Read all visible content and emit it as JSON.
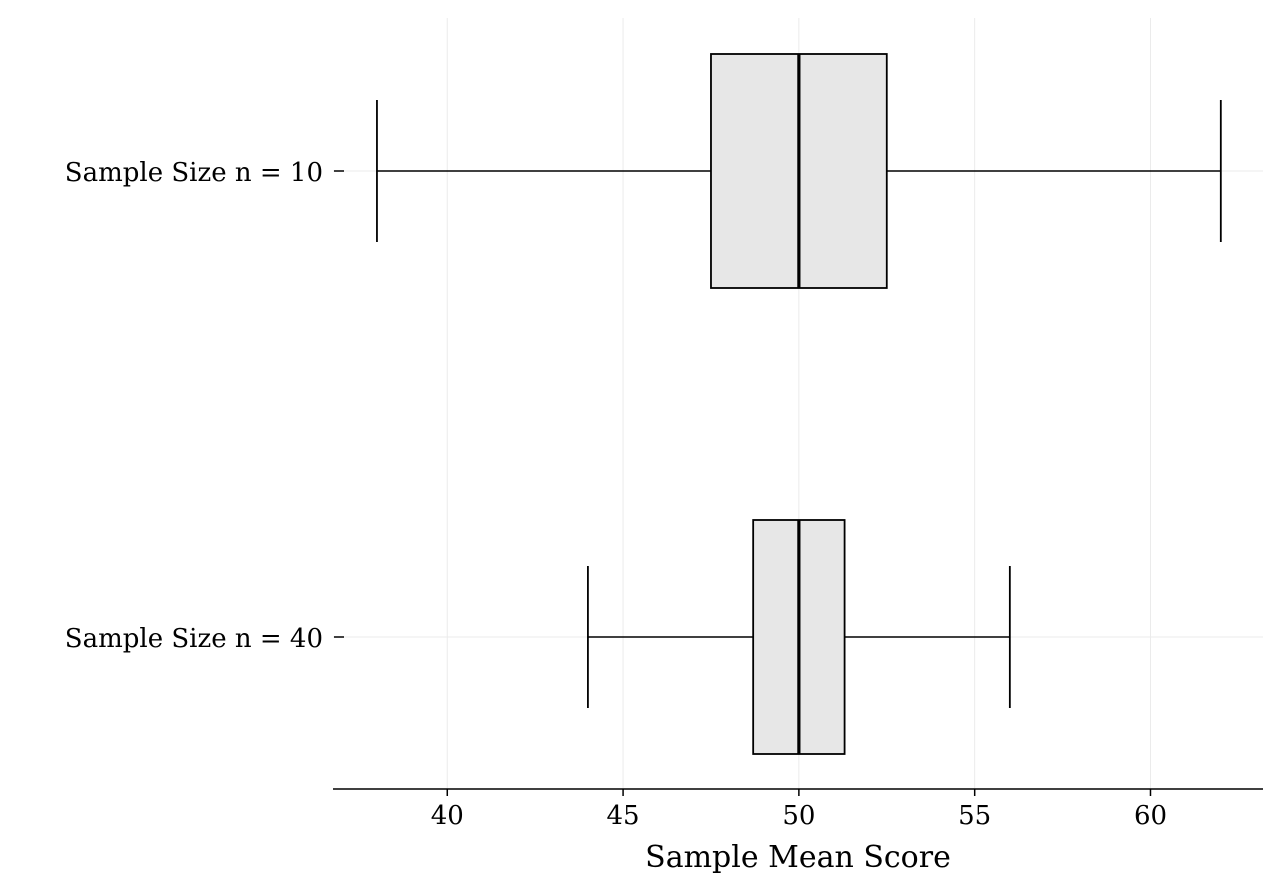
{
  "chart_data": {
    "type": "boxplot",
    "orientation": "horizontal",
    "title": "",
    "xlabel": "Sample Mean Score",
    "ylabel": "",
    "xlim": [
      36.75,
      63.2
    ],
    "xticks": [
      40,
      45,
      50,
      55,
      60
    ],
    "xtick_labels": [
      "40",
      "45",
      "50",
      "55",
      "60"
    ],
    "grid": true,
    "categories": [
      "Sample Size n = 10",
      "Sample Size n = 40"
    ],
    "boxes": [
      {
        "category": "Sample Size n = 10",
        "whisker_low": 38.0,
        "q1": 47.5,
        "median": 50.0,
        "q3": 52.5,
        "whisker_high": 62.0
      },
      {
        "category": "Sample Size n = 40",
        "whisker_low": 44.0,
        "q1": 48.7,
        "median": 50.0,
        "q3": 51.3,
        "whisker_high": 56.0
      }
    ],
    "colors": {
      "box_fill": "#e7e7e7",
      "stroke": "#000000",
      "grid": "#ebebeb"
    }
  }
}
